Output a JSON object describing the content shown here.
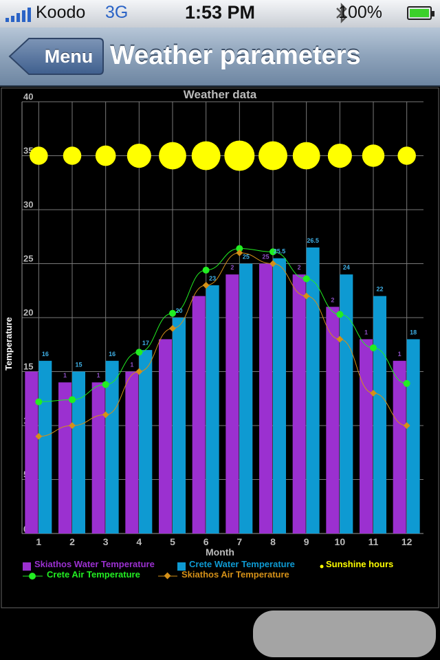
{
  "status_bar": {
    "carrier": "Koodo",
    "network": "3G",
    "time": "1:53 PM",
    "battery": "100%"
  },
  "nav": {
    "back_label": "Menu",
    "title": "Weather parameters"
  },
  "colors": {
    "skiathos_water": "#9b30d0",
    "crete_water": "#0e9ad2",
    "crete_air": "#22ee22",
    "skiathos_air": "#d49018",
    "sunshine": "#ffff00",
    "grid": "#7a7a7a"
  },
  "chart_data": {
    "type": "bar",
    "title": "Weather data",
    "xlabel": "Month",
    "ylabel": "Temperature",
    "categories": [
      "1",
      "2",
      "3",
      "4",
      "5",
      "6",
      "7",
      "8",
      "9",
      "10",
      "11",
      "12"
    ],
    "ylim": [
      0,
      40
    ],
    "yticks": [
      "0",
      "5",
      "10",
      "15",
      "20",
      "25",
      "30",
      "35",
      "40"
    ],
    "grid": true,
    "legend_position": "bottom",
    "series": [
      {
        "name": "Skiathos Water Temperature",
        "kind": "bar",
        "values": [
          15,
          14,
          14,
          15,
          18,
          22,
          24,
          25,
          24,
          21,
          18,
          16
        ],
        "labels": [
          "",
          "1",
          "1",
          "1",
          "",
          "",
          "2",
          "25",
          "2",
          "2",
          "1",
          "1"
        ]
      },
      {
        "name": "Crete Water Temperature",
        "kind": "bar",
        "values": [
          16,
          15,
          16,
          17,
          20,
          23,
          25,
          25.5,
          26.5,
          24,
          22,
          18
        ],
        "labels": [
          "16",
          "15",
          "16",
          "17",
          "20",
          "23",
          "25",
          "25.5",
          "26.5",
          "24",
          "22",
          "18"
        ]
      },
      {
        "name": "Sunshine hours",
        "kind": "bubble",
        "y": 35,
        "values": [
          4,
          4,
          5,
          7,
          9,
          10,
          11,
          10,
          9,
          7,
          6,
          4
        ]
      },
      {
        "name": "Crete Air Temperature",
        "kind": "line",
        "values": [
          12.2,
          12.4,
          13.8,
          16.8,
          20.4,
          24.4,
          26.4,
          26.1,
          23.6,
          20.3,
          17.2,
          13.9
        ]
      },
      {
        "name": "Skiathos Air Temperature",
        "kind": "line",
        "values": [
          9,
          10,
          11,
          15,
          19,
          23,
          26,
          25,
          22,
          18,
          13,
          10
        ]
      }
    ]
  }
}
